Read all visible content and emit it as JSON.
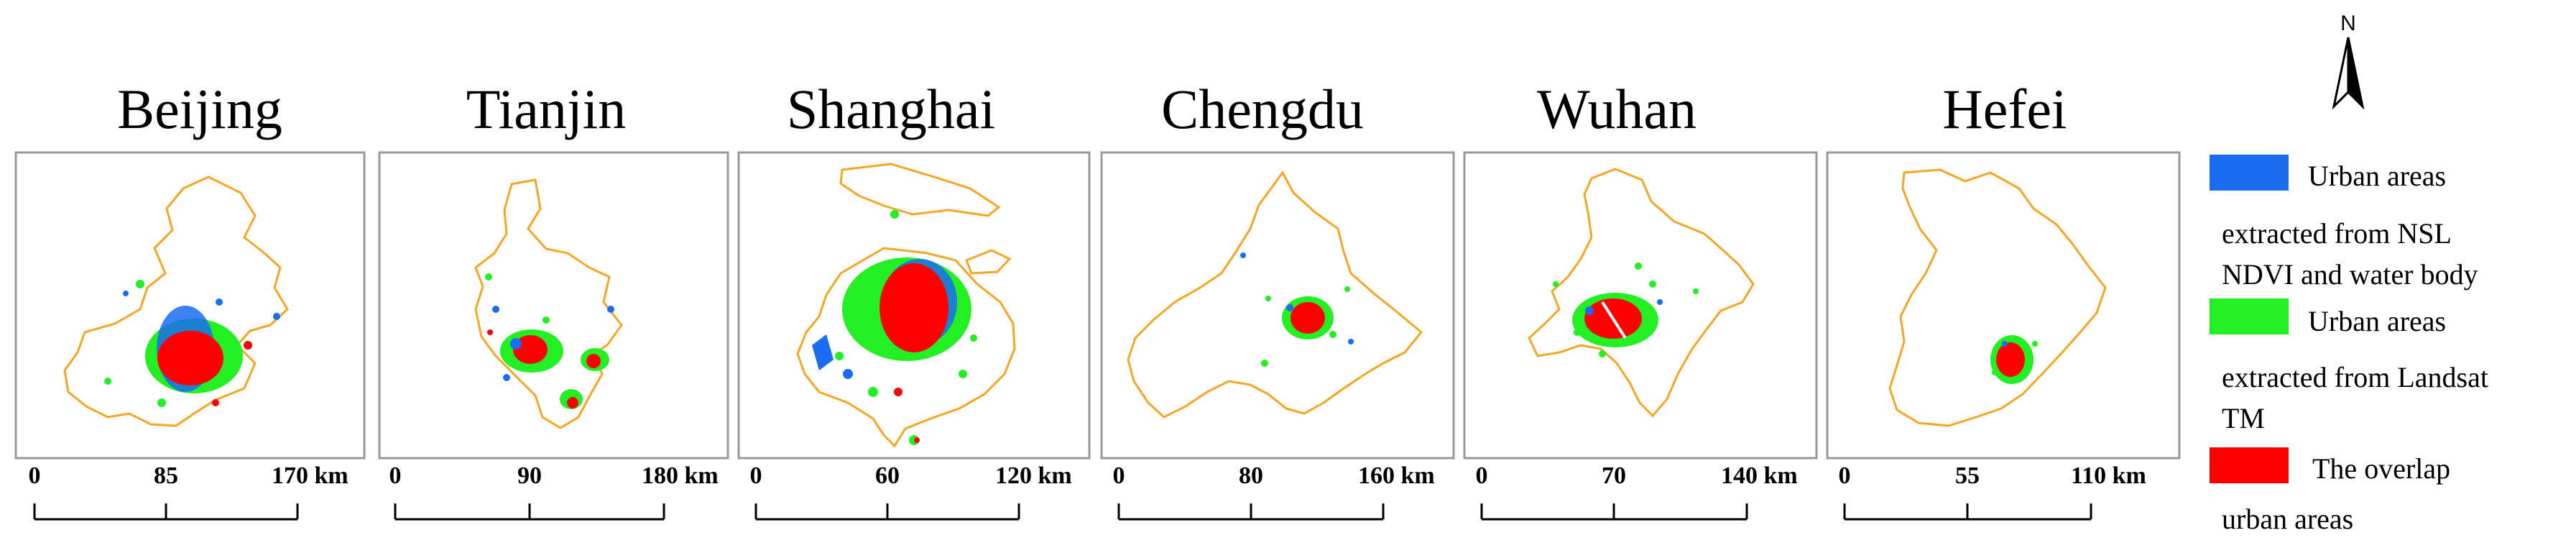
{
  "north_arrow": {
    "label": "N",
    "icon": "north-arrow-icon"
  },
  "colors": {
    "nsl": "#1a6cf0",
    "landsat": "#22f022",
    "overlap": "#ff0000",
    "boundary": "#f5a623",
    "frame": "#999999"
  },
  "panels": [
    {
      "id": "beijing",
      "title": "Beijing",
      "ticks": [
        "0",
        "85",
        "170 km"
      ]
    },
    {
      "id": "tianjin",
      "title": "Tianjin",
      "ticks": [
        "0",
        "90",
        "180 km"
      ]
    },
    {
      "id": "shanghai",
      "title": "Shanghai",
      "ticks": [
        "0",
        "60",
        "120 km"
      ]
    },
    {
      "id": "chengdu",
      "title": "Chengdu",
      "ticks": [
        "0",
        "80",
        "160 km"
      ]
    },
    {
      "id": "wuhan",
      "title": "Wuhan",
      "ticks": [
        "0",
        "70",
        "140 km"
      ]
    },
    {
      "id": "hefei",
      "title": "Hefei",
      "ticks": [
        "0",
        "55",
        "110 km"
      ]
    }
  ],
  "legend": [
    {
      "color_key": "nsl",
      "lines": [
        "Urban areas",
        "extracted from NSL",
        "NDVI and water body"
      ]
    },
    {
      "color_key": "landsat",
      "lines": [
        "Urban areas",
        "extracted from Landsat",
        "TM"
      ]
    },
    {
      "color_key": "overlap",
      "lines": [
        "The overlap",
        "urban areas"
      ]
    }
  ]
}
